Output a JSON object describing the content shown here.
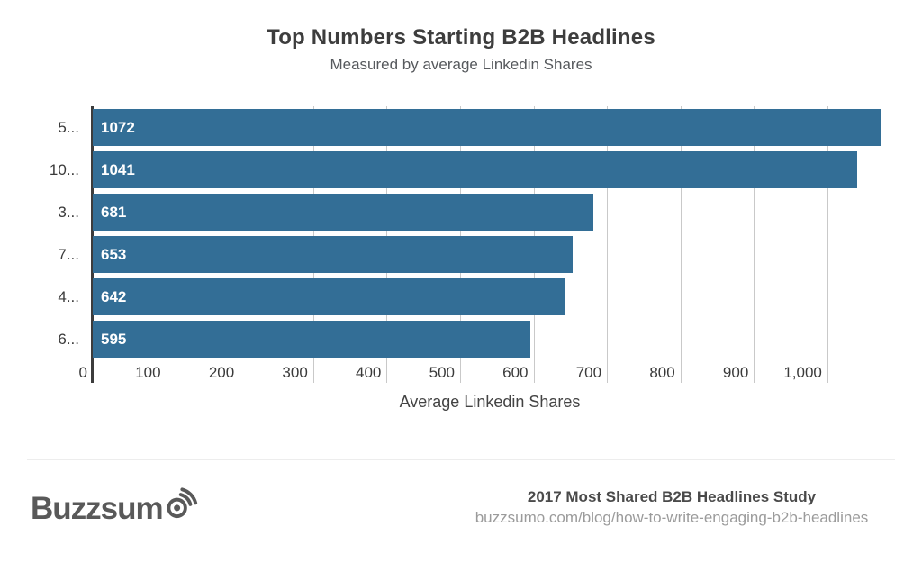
{
  "header": {
    "title": "Top Numbers Starting B2B Headlines",
    "subtitle": "Measured by average Linkedin Shares"
  },
  "chart_data": {
    "type": "bar",
    "orientation": "horizontal",
    "title": "Top Numbers Starting B2B Headlines",
    "subtitle": "Measured by average Linkedin Shares",
    "categories": [
      "5...",
      "10...",
      "3...",
      "7...",
      "4...",
      "6..."
    ],
    "values": [
      1072,
      1041,
      681,
      653,
      642,
      595
    ],
    "value_labels": [
      "1072",
      "1041",
      "681",
      "653",
      "642",
      "595"
    ],
    "xlabel": "Average Linkedin Shares",
    "xlim": [
      0,
      1081
    ],
    "xticks": [
      0,
      100,
      200,
      300,
      400,
      500,
      600,
      700,
      800,
      900,
      1000
    ],
    "xtick_labels": [
      "0",
      "100",
      "200",
      "300",
      "400",
      "500",
      "600",
      "700",
      "800",
      "900",
      "1,000"
    ],
    "grid": true,
    "legend": "none",
    "bar_color": "#336e96"
  },
  "colors": {
    "bar": "#336e96",
    "gridline": "#c9c9c9",
    "axis_line": "#3c3c3c",
    "title_text": "#3d3d3d",
    "subtitle_text": "#56595d",
    "tick_text": "#3a3a3a",
    "value_label_text": "#ffffff",
    "footer_study_text": "#4a4a4a",
    "footer_url_text": "#9b9b9b",
    "logo": "#595959",
    "divider": "#ededed",
    "background": "#ffffff"
  },
  "footer": {
    "logo_text": "Buzzsum",
    "logo_brand": "Buzzsumo",
    "study_line": "2017 Most Shared B2B Headlines Study",
    "url_line": "buzzsumo.com/blog/how-to-write-engaging-b2b-headlines"
  }
}
